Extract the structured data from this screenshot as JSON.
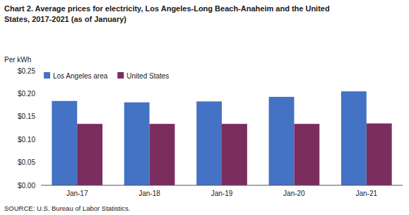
{
  "chart_data": {
    "type": "bar",
    "title": "Chart 2. Average prices for electricity, Los Angeles-Long Beach-Anaheim and the United",
    "subtitle": "States, 2017-2021  (as of January)",
    "y_label": "Per kWh",
    "annotations": [
      "SOURCE: U.S. Bureau of Labor Statistics."
    ],
    "categories": [
      "Jan-17",
      "Jan-18",
      "Jan-19",
      "Jan-20",
      "Jan-21"
    ],
    "series": [
      {
        "name": "Los Angeles area",
        "color": "#4472C4",
        "values": [
          0.184,
          0.181,
          0.183,
          0.193,
          0.205
        ]
      },
      {
        "name": "United States",
        "color": "#7B2D5E",
        "values": [
          0.134,
          0.134,
          0.134,
          0.134,
          0.135
        ]
      }
    ],
    "ylim": [
      0.0,
      0.25
    ],
    "yticks": [
      {
        "value": 0.0,
        "label": "$0.00"
      },
      {
        "value": 0.05,
        "label": "$0.05"
      },
      {
        "value": 0.1,
        "label": "$0.10"
      },
      {
        "value": 0.15,
        "label": "$0.15"
      },
      {
        "value": 0.2,
        "label": "$0.20"
      },
      {
        "value": 0.25,
        "label": "$0.25"
      }
    ],
    "grid": false,
    "legend": "upper left"
  }
}
